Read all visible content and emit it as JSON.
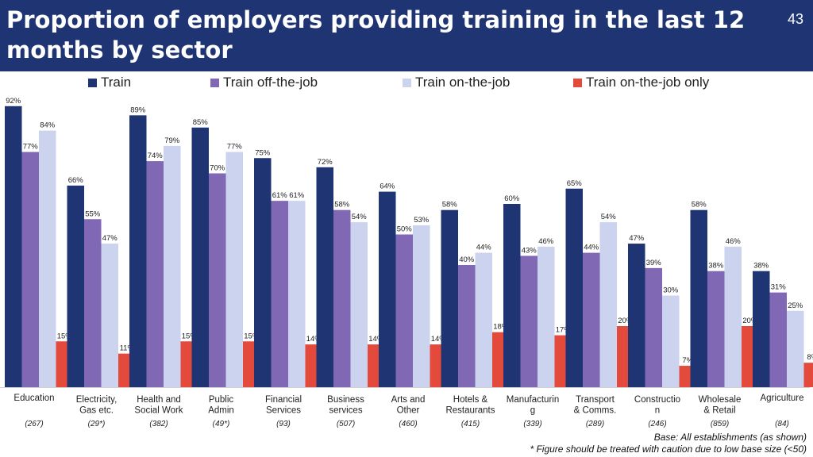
{
  "header": {
    "title": "Proportion of employers providing training in the last 12 months by sector",
    "page_number": "43"
  },
  "colors": {
    "banner": "#1f3473",
    "series": [
      "#1f3473",
      "#8068b4",
      "#cbd3ef",
      "#e34a3c"
    ]
  },
  "chart_data": {
    "type": "bar",
    "categories": [
      "Education",
      "Electricity, Gas etc.",
      "Health and Social Work",
      "Public Admin",
      "Financial Services",
      "Business services",
      "Arts and Other",
      "Hotels & Restaurants",
      "Manufacturing",
      "Transport & Comms.",
      "Construction",
      "Wholesale & Retail",
      "Agriculture"
    ],
    "category_lines": [
      [
        "Education"
      ],
      [
        "Electricity,",
        "Gas etc."
      ],
      [
        "Health and",
        "Social Work"
      ],
      [
        "Public",
        "Admin"
      ],
      [
        "Financial",
        "Services"
      ],
      [
        "Business",
        "services"
      ],
      [
        "Arts and",
        "Other"
      ],
      [
        "Hotels &",
        "Restaurants"
      ],
      [
        "Manufacturin",
        "g"
      ],
      [
        "Transport",
        "& Comms."
      ],
      [
        "Constructio",
        "n"
      ],
      [
        "Wholesale",
        "& Retail"
      ],
      [
        "Agriculture"
      ]
    ],
    "base_sizes": [
      "(267)",
      "(29*)",
      "(382)",
      "(49*)",
      "(93)",
      "(507)",
      "(460)",
      "(415)",
      "(339)",
      "(289)",
      "(246)",
      "(859)",
      "(84)"
    ],
    "series": [
      {
        "name": "Train",
        "values": [
          92,
          66,
          89,
          85,
          75,
          72,
          64,
          58,
          60,
          65,
          47,
          58,
          38
        ]
      },
      {
        "name": "Train off-the-job",
        "values": [
          77,
          55,
          74,
          70,
          61,
          58,
          50,
          40,
          43,
          44,
          39,
          38,
          31
        ]
      },
      {
        "name": "Train on-the-job",
        "values": [
          84,
          47,
          79,
          77,
          61,
          54,
          53,
          44,
          46,
          54,
          30,
          46,
          25
        ]
      },
      {
        "name": "Train on-the-job only",
        "values": [
          15,
          11,
          15,
          15,
          14,
          14,
          14,
          18,
          17,
          20,
          7,
          20,
          8
        ]
      }
    ],
    "value_suffix": "%",
    "ylim": [
      0,
      100
    ],
    "grid": false,
    "legend_position": "top"
  },
  "footnotes": {
    "base": "Base: All establishments (as shown)",
    "caution": "* Figure should be treated with caution due to low base size (<50)"
  }
}
